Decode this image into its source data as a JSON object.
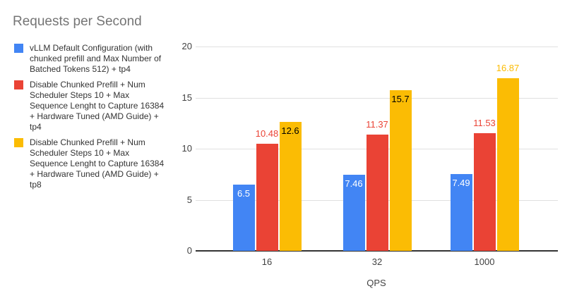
{
  "chart_data": {
    "type": "bar",
    "title": "Requests per Second",
    "xlabel": "QPS",
    "ylabel": "",
    "categories": [
      "16",
      "32",
      "1000"
    ],
    "ylim": [
      0,
      20
    ],
    "yticks": [
      0,
      5,
      10,
      15,
      20
    ],
    "grid": true,
    "legend_position": "left",
    "series": [
      {
        "name": "vLLM Default Configuration (with chunked prefill and Max Number of Batched Tokens 512) + tp4",
        "color": "#4285F4",
        "values": [
          6.5,
          7.46,
          7.49
        ],
        "labels": [
          "6.5",
          "7.46",
          "7.49"
        ],
        "label_placements": [
          "inside",
          "inside",
          "inside"
        ],
        "label_colors": [
          "#ffffff",
          "#ffffff",
          "#ffffff"
        ]
      },
      {
        "name": "Disable Chunked Prefill + Num Scheduler Steps 10 + Max Sequence Lenght to Capture 16384 + Hardware Tuned (AMD Guide) + tp4",
        "color": "#EA4335",
        "values": [
          10.48,
          11.37,
          11.53
        ],
        "labels": [
          "10.48",
          "11.37",
          "11.53"
        ],
        "label_placements": [
          "above",
          "above",
          "above"
        ],
        "label_colors": [
          "#EA4335",
          "#EA4335",
          "#EA4335"
        ]
      },
      {
        "name": "Disable Chunked Prefill + Num Scheduler Steps 10 + Max Sequence Lenght to Capture 16384 + Hardware Tuned (AMD Guide) + tp8",
        "color": "#FBBC04",
        "values": [
          12.6,
          15.7,
          16.87
        ],
        "labels": [
          "12.6",
          "15.7",
          "16.87"
        ],
        "label_placements": [
          "inside",
          "inside",
          "above"
        ],
        "label_colors": [
          "#000000",
          "#000000",
          "#FBBC04"
        ]
      }
    ]
  },
  "colors": {
    "title_text": "#757575",
    "tick_text": "#424242",
    "legend_text": "#333333",
    "gridline": "#e0e0e0",
    "axis_line": "#333333",
    "background": "#ffffff"
  }
}
